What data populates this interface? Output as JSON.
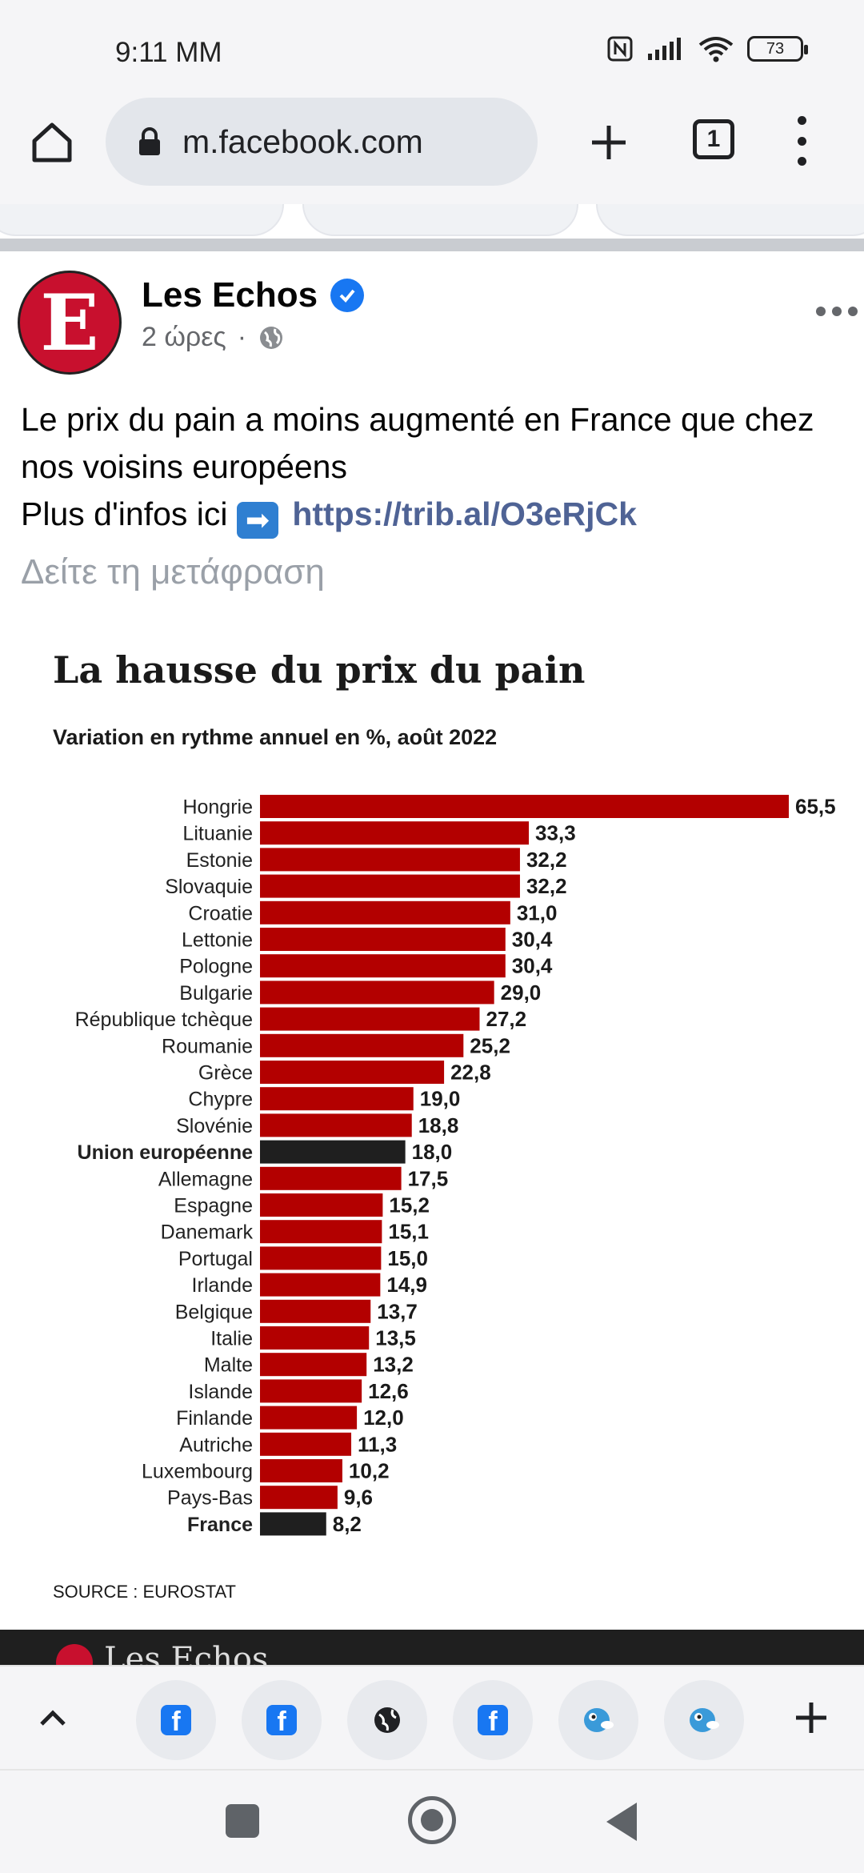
{
  "status_bar": {
    "time": "9:11 MM",
    "battery": "73"
  },
  "browser": {
    "url": "m.facebook.com",
    "tab_count": "1"
  },
  "post": {
    "page_name": "Les  Echos",
    "avatar_letter": "E",
    "time_ago": "2 ώρες",
    "separator": "·",
    "text_line1": "Le prix du pain a moins augmenté en France que chez nos voisins européens",
    "text_line2_prefix": "Plus d'infos ici",
    "link": "https://trib.al/O3eRjCk",
    "see_translation": "Δείτε τη μετάφραση"
  },
  "chart_data": {
    "type": "bar",
    "orientation": "horizontal",
    "title": "La hausse du prix du pain",
    "subtitle": "Variation en rythme annuel en %, août 2022",
    "source": "SOURCE : EUROSTAT",
    "xlim": [
      0,
      65.5
    ],
    "colors": {
      "default": "#b30000",
      "highlight": "#1f1f1f"
    },
    "categories": [
      "Hongrie",
      "Lituanie",
      "Estonie",
      "Slovaquie",
      "Croatie",
      "Lettonie",
      "Pologne",
      "Bulgarie",
      "République tchèque",
      "Roumanie",
      "Grèce",
      "Chypre",
      "Slovénie",
      "Union européenne",
      "Allemagne",
      "Espagne",
      "Danemark",
      "Portugal",
      "Irlande",
      "Belgique",
      "Italie",
      "Malte",
      "Islande",
      "Finlande",
      "Autriche",
      "Luxembourg",
      "Pays-Bas",
      "France"
    ],
    "values": [
      65.5,
      33.3,
      32.2,
      32.2,
      31.0,
      30.4,
      30.4,
      29.0,
      27.2,
      25.2,
      22.8,
      19.0,
      18.8,
      18.0,
      17.5,
      15.2,
      15.1,
      15.0,
      14.9,
      13.7,
      13.5,
      13.2,
      12.6,
      12.0,
      11.3,
      10.2,
      9.6,
      8.2
    ],
    "value_labels": [
      "65,5",
      "33,3",
      "32,2",
      "32,2",
      "31,0",
      "30,4",
      "30,4",
      "29,0",
      "27,2",
      "25,2",
      "22,8",
      "19,0",
      "18,8",
      "18,0",
      "17,5",
      "15,2",
      "15,1",
      "15,0",
      "14,9",
      "13,7",
      "13,5",
      "13,2",
      "12,6",
      "12,0",
      "11,3",
      "10,2",
      "9,6",
      "8,2"
    ],
    "highlighted": [
      "Union européenne",
      "France"
    ]
  },
  "footer_band": {
    "brand": "Les Echos"
  }
}
